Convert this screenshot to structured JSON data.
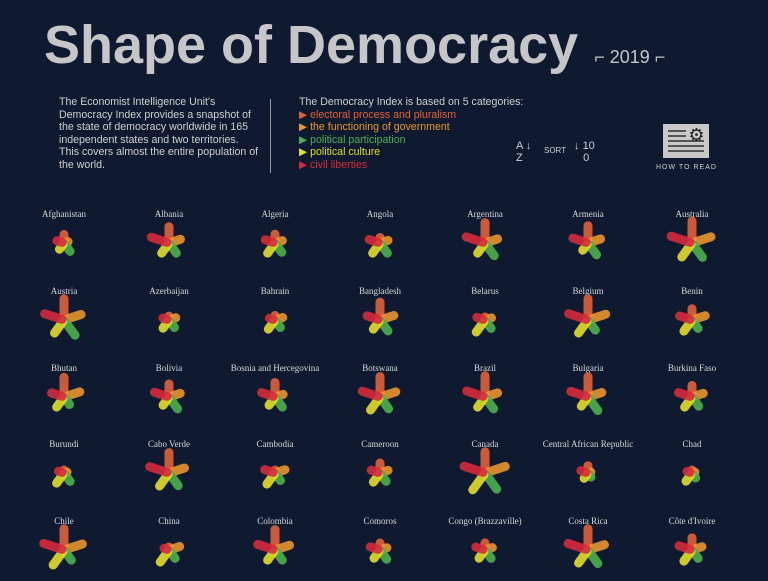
{
  "header": {
    "title": "Shape of Democracy",
    "year": "⌐ 2019 ⌐"
  },
  "intro": "The Economist Intelligence Unit's Democracy Index provides a snapshot of the state of democracy worldwide in 165 independent states and two territories. This covers almost the entire population of the world.",
  "categories_heading": "The Democracy Index is based on 5 categories:",
  "categories": [
    {
      "label": "electoral process and pluralism",
      "color": "#e0613a"
    },
    {
      "label": "the functioning of government",
      "color": "#e8962e"
    },
    {
      "label": "political participation",
      "color": "#4caf50"
    },
    {
      "label": "political culture",
      "color": "#e2de2a"
    },
    {
      "label": "civil liberties",
      "color": "#d62a3a"
    }
  ],
  "sort": {
    "az_top": "A",
    "az_bottom": "Z",
    "label": "SORT",
    "num_top": "10",
    "num_bottom": "0"
  },
  "how_to_read": "HOW TO READ",
  "chart_data": {
    "type": "radial-petal",
    "scale": [
      0,
      10
    ],
    "series": [
      "electoral process and pluralism",
      "the functioning of government",
      "political participation",
      "political culture",
      "civil liberties"
    ],
    "countries": [
      {
        "name": "Afghanistan",
        "values": [
          2.92,
          0.64,
          3.89,
          2.5,
          2.35
        ]
      },
      {
        "name": "Albania",
        "values": [
          7.0,
          4.71,
          5.0,
          5.0,
          8.24
        ]
      },
      {
        "name": "Algeria",
        "values": [
          3.08,
          2.5,
          4.44,
          5.0,
          3.82
        ]
      },
      {
        "name": "Angola",
        "values": [
          1.33,
          2.86,
          5.0,
          5.0,
          4.41
        ]
      },
      {
        "name": "Argentina",
        "values": [
          9.17,
          5.36,
          6.67,
          5.0,
          8.82
        ]
      },
      {
        "name": "Armenia",
        "values": [
          7.5,
          5.36,
          6.11,
          3.13,
          6.76
        ]
      },
      {
        "name": "Australia",
        "values": [
          10,
          8.93,
          7.78,
          7.5,
          10
        ]
      },
      {
        "name": "Austria",
        "values": [
          9.58,
          7.86,
          8.33,
          6.88,
          9.12
        ]
      },
      {
        "name": "Azerbaijan",
        "values": [
          0.5,
          2.14,
          3.33,
          3.75,
          1.76
        ]
      },
      {
        "name": "Bahrain",
        "values": [
          0.83,
          2.71,
          3.33,
          4.38,
          1.47
        ]
      },
      {
        "name": "Bangladesh",
        "values": [
          7.83,
          6.07,
          5.56,
          4.38,
          5.59
        ]
      },
      {
        "name": "Belarus",
        "values": [
          0.0,
          2.0,
          3.89,
          6.25,
          2.94
        ]
      },
      {
        "name": "Belgium",
        "values": [
          9.58,
          8.21,
          5.0,
          6.88,
          9.12
        ]
      },
      {
        "name": "Benin",
        "values": [
          4.33,
          5.71,
          3.89,
          5.63,
          5.29
        ]
      },
      {
        "name": "Bhutan",
        "values": [
          8.75,
          7.14,
          3.33,
          5.0,
          5.29
        ]
      },
      {
        "name": "Bolivia",
        "values": [
          5.25,
          4.64,
          6.11,
          3.75,
          6.47
        ]
      },
      {
        "name": "Bosnia and Hercegovina",
        "values": [
          6.08,
          2.93,
          5.0,
          3.75,
          5.88
        ]
      },
      {
        "name": "Botswana",
        "values": [
          9.17,
          7.14,
          6.11,
          6.88,
          8.24
        ]
      },
      {
        "name": "Brazil",
        "values": [
          9.58,
          5.36,
          6.11,
          5.0,
          8.53
        ]
      },
      {
        "name": "Bulgaria",
        "values": [
          9.17,
          6.07,
          7.22,
          4.38,
          7.94
        ]
      },
      {
        "name": "Burkina Faso",
        "values": [
          4.5,
          4.64,
          4.44,
          5.0,
          5.88
        ]
      },
      {
        "name": "Burundi",
        "values": [
          0.0,
          0.07,
          3.89,
          5.0,
          1.47
        ]
      },
      {
        "name": "Cabo Verde",
        "values": [
          9.17,
          7.0,
          6.67,
          6.88,
          9.12
        ]
      },
      {
        "name": "Cambodia",
        "values": [
          0.0,
          3.93,
          3.33,
          5.63,
          4.12
        ]
      },
      {
        "name": "Cameroon",
        "values": [
          3.67,
          2.86,
          3.89,
          4.38,
          3.24
        ]
      },
      {
        "name": "Canada",
        "values": [
          9.58,
          9.64,
          8.89,
          9.38,
          10
        ]
      },
      {
        "name": "Central African Republic",
        "values": [
          2.25,
          0.0,
          1.11,
          1.88,
          2.35
        ]
      },
      {
        "name": "Chad",
        "values": [
          0.0,
          0.0,
          1.67,
          3.75,
          1.18
        ]
      },
      {
        "name": "Chile",
        "values": [
          9.58,
          8.57,
          5.0,
          8.13,
          9.71
        ]
      },
      {
        "name": "China",
        "values": [
          0.0,
          4.29,
          3.89,
          6.25,
          1.18
        ]
      },
      {
        "name": "Colombia",
        "values": [
          9.17,
          6.43,
          5.0,
          5.0,
          7.94
        ]
      },
      {
        "name": "Comoros",
        "values": [
          2.08,
          2.21,
          4.44,
          3.75,
          3.82
        ]
      },
      {
        "name": "Congo (Brazzaville)",
        "values": [
          2.17,
          2.5,
          3.89,
          3.75,
          3.53
        ]
      },
      {
        "name": "Costa Rica",
        "values": [
          9.58,
          7.5,
          7.22,
          6.88,
          9.41
        ]
      },
      {
        "name": "Côte d'Ivoire",
        "values": [
          4.83,
          3.93,
          3.89,
          5.63,
          5.59
        ]
      }
    ]
  }
}
